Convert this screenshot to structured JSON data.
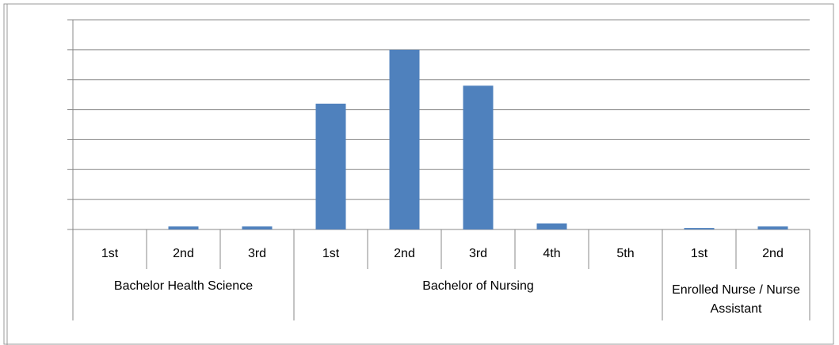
{
  "chart_data": {
    "type": "bar",
    "color": "#4f81bd",
    "grid": true,
    "ylim": [
      0,
      7
    ],
    "yticks": [
      0,
      1,
      2,
      3,
      4,
      5,
      6,
      7
    ],
    "groups": [
      {
        "name": "Bachelor Health Science",
        "categories": [
          "1st",
          "2nd",
          "3rd"
        ],
        "values": [
          0,
          0.1,
          0.1
        ]
      },
      {
        "name": "Bachelor of Nursing",
        "categories": [
          "1st",
          "2nd",
          "3rd",
          "4th",
          "5th"
        ],
        "values": [
          4.2,
          6.0,
          4.8,
          0.2,
          0
        ]
      },
      {
        "name": "Enrolled Nurse / Nurse Assistant",
        "categories": [
          "1st",
          "2nd"
        ],
        "values": [
          0.05,
          0.1
        ]
      }
    ]
  }
}
